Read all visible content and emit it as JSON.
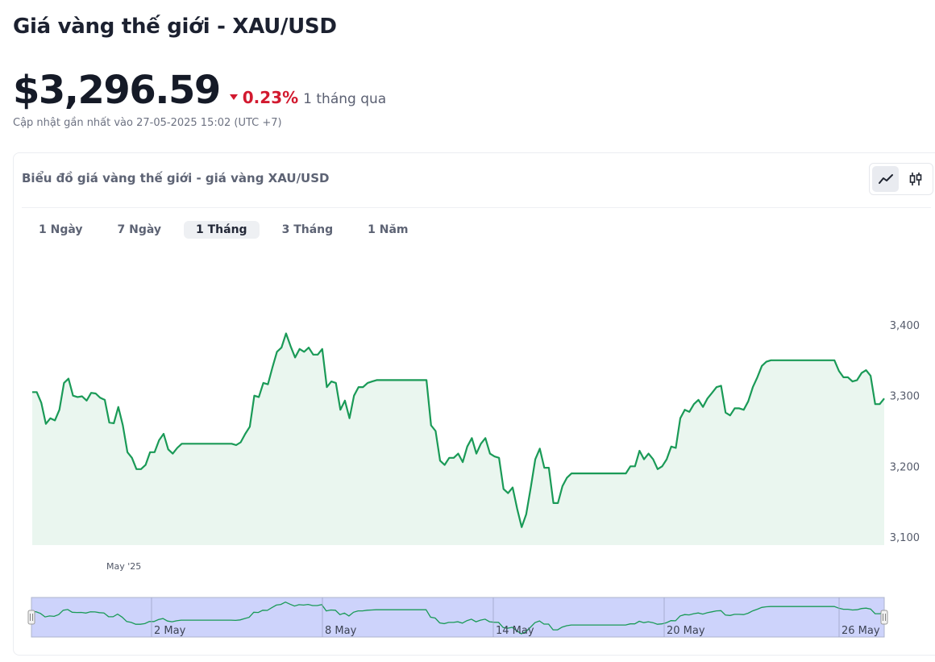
{
  "header": {
    "title": "Giá vàng thế giới - XAU/USD",
    "price": "$3,296.59",
    "change_value": "0.23%",
    "change_period": "1 tháng qua",
    "updated": "Cập nhật gần nhất vào 27-05-2025 15:02 (UTC +7)",
    "change_direction": "down",
    "change_color": "#d2192f"
  },
  "card": {
    "title": "Biểu đồ giá vàng thế giới - giá vàng XAU/USD",
    "chart_toggle": [
      {
        "icon": "line-chart-icon",
        "active": true
      },
      {
        "icon": "candlestick-icon",
        "active": false
      }
    ],
    "ranges": [
      {
        "label": "1 Ngày",
        "active": false
      },
      {
        "label": "7 Ngày",
        "active": false
      },
      {
        "label": "1 Tháng",
        "active": true
      },
      {
        "label": "3 Tháng",
        "active": false
      },
      {
        "label": "1 Năm",
        "active": false
      }
    ]
  },
  "chart_data": {
    "type": "area",
    "series_color": "#1a9a57",
    "fill_color": "#eaf6ef",
    "y_ticks": [
      "3,400",
      "3,300",
      "3,200",
      "3,100"
    ],
    "y_tick_values": [
      3400,
      3300,
      3200,
      3100
    ],
    "ylim": [
      3090,
      3420
    ],
    "x_label": "May '25",
    "navigator_labels": [
      "2 May",
      "8 May",
      "14 May",
      "20 May",
      "26 May"
    ],
    "values": [
      3305,
      3305,
      3290,
      3260,
      3268,
      3265,
      3280,
      3318,
      3324,
      3300,
      3298,
      3299,
      3293,
      3304,
      3303,
      3297,
      3294,
      3262,
      3261,
      3284,
      3258,
      3220,
      3212,
      3196,
      3196,
      3202,
      3220,
      3220,
      3237,
      3246,
      3224,
      3218,
      3226,
      3232,
      3232,
      3232,
      3232,
      3232,
      3232,
      3232,
      3232,
      3232,
      3232,
      3232,
      3232,
      3230,
      3234,
      3246,
      3256,
      3300,
      3298,
      3318,
      3316,
      3340,
      3362,
      3368,
      3388,
      3370,
      3354,
      3366,
      3362,
      3368,
      3358,
      3358,
      3366,
      3312,
      3320,
      3318,
      3280,
      3293,
      3268,
      3300,
      3312,
      3312,
      3318,
      3320,
      3322,
      3322,
      3322,
      3322,
      3322,
      3322,
      3322,
      3322,
      3322,
      3322,
      3322,
      3322,
      3258,
      3250,
      3208,
      3202,
      3212,
      3212,
      3218,
      3206,
      3228,
      3240,
      3218,
      3232,
      3240,
      3218,
      3214,
      3212,
      3168,
      3162,
      3170,
      3140,
      3114,
      3132,
      3170,
      3210,
      3225,
      3198,
      3198,
      3148,
      3148,
      3172,
      3184,
      3190,
      3190,
      3190,
      3190,
      3190,
      3190,
      3190,
      3190,
      3190,
      3190,
      3190,
      3190,
      3190,
      3200,
      3200,
      3222,
      3210,
      3218,
      3210,
      3196,
      3200,
      3210,
      3228,
      3226,
      3268,
      3280,
      3277,
      3288,
      3294,
      3284,
      3296,
      3304,
      3312,
      3314,
      3276,
      3272,
      3282,
      3282,
      3280,
      3292,
      3312,
      3326,
      3342,
      3348,
      3350,
      3350,
      3350,
      3350,
      3350,
      3350,
      3350,
      3350,
      3350,
      3350,
      3350,
      3350,
      3350,
      3350,
      3350,
      3335,
      3326,
      3326,
      3320,
      3322,
      3332,
      3336,
      3328,
      3288,
      3288,
      3296
    ]
  }
}
